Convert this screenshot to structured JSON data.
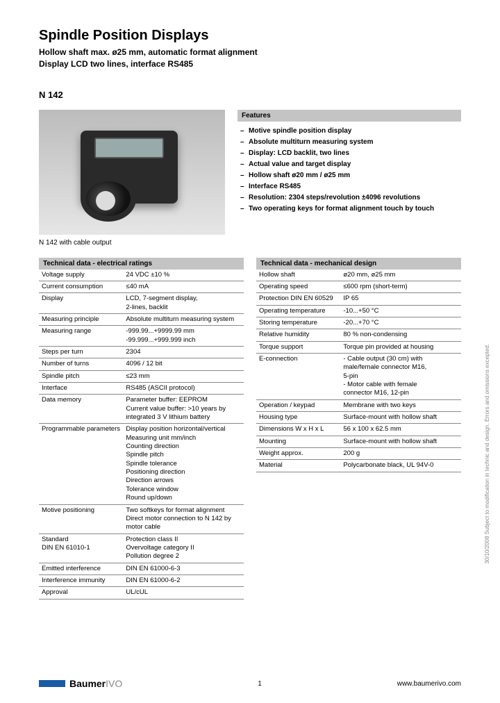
{
  "header": {
    "title": "Spindle Position Displays",
    "subtitle1": "Hollow shaft max. ø25 mm, automatic format alignment",
    "subtitle2": "Display LCD two lines, interface RS485",
    "model": "N 142"
  },
  "image_caption": "N 142 with cable output",
  "features": {
    "header": "Features",
    "items": [
      "Motive spindle position display",
      "Absolute multiturn measuring system",
      "Display: LCD backlit, two lines",
      "Actual value and target display",
      "Hollow shaft ø20 mm / ø25 mm",
      "Interface RS485",
      "Resolution: 2304 steps/revolution ±4096 revolutions",
      "Two operating keys for format alignment touch by touch"
    ]
  },
  "electrical": {
    "header": "Technical data - electrical ratings",
    "rows": [
      {
        "label": "Voltage supply",
        "value": "24 VDC ±10 %"
      },
      {
        "label": "Current consumption",
        "value": "≤40 mA"
      },
      {
        "label": "Display",
        "value": "LCD, 7-segment display,\n2-lines, backlit"
      },
      {
        "label": "Measuring principle",
        "value": "Absolute multiturn measuring system"
      },
      {
        "label": "Measuring range",
        "value": "-999.99...+9999.99 mm\n-99.999...+999.999 inch"
      },
      {
        "label": "Steps per turn",
        "value": "2304"
      },
      {
        "label": "Number of turns",
        "value": "4096 / 12 bit"
      },
      {
        "label": "Spindle pitch",
        "value": "≤23 mm"
      },
      {
        "label": "Interface",
        "value": "RS485 (ASCII protocol)"
      },
      {
        "label": "Data memory",
        "value": "Parameter buffer: EEPROM\nCurrent value buffer: >10 years by integrated 3 V lithium battery"
      },
      {
        "label": "Programmable parameters",
        "value": "Display position horizontal/vertical\nMeasuring unit mm/inch\nCounting direction\nSpindle pitch\nSpindle tolerance\nPositioning direction\nDirection arrows\nTolerance window\nRound up/down"
      },
      {
        "label": "Motive positioning",
        "value": "Two softkeys for format alignment\nDirect motor connection to N 142 by motor cable"
      },
      {
        "label": "Standard\nDIN EN 61010-1",
        "value": "Protection class II\nOvervoltage category II\nPollution degree 2"
      },
      {
        "label": "Emitted interference",
        "value": "DIN EN 61000-6-3"
      },
      {
        "label": "Interference immunity",
        "value": "DIN EN 61000-6-2"
      },
      {
        "label": "Approval",
        "value": "UL/cUL"
      }
    ]
  },
  "mechanical": {
    "header": "Technical data - mechanical design",
    "rows": [
      {
        "label": "Hollow shaft",
        "value": "ø20 mm, ø25 mm"
      },
      {
        "label": "Operating speed",
        "value": "≤600 rpm (short-term)"
      },
      {
        "label": "Protection DIN EN 60529",
        "value": "IP 65"
      },
      {
        "label": "Operating temperature",
        "value": "-10...+50 °C"
      },
      {
        "label": "Storing temperature",
        "value": "-20...+70 °C"
      },
      {
        "label": "Relative humidity",
        "value": "80 % non-condensing"
      },
      {
        "label": "Torque support",
        "value": "Torque pin provided at housing"
      },
      {
        "label": "E-connection",
        "value": "- Cable output (30 cm) with\n  male/female connector M16,\n  5-pin\n- Motor cable with female\n  connector M16, 12-pin"
      },
      {
        "label": "Operation / keypad",
        "value": "Membrane with two keys"
      },
      {
        "label": "Housing type",
        "value": "Surface-mount with hollow shaft"
      },
      {
        "label": "Dimensions W x H x L",
        "value": "56 x 100 x 62.5 mm"
      },
      {
        "label": "Mounting",
        "value": "Surface-mount with hollow shaft"
      },
      {
        "label": "Weight approx.",
        "value": "200 g"
      },
      {
        "label": "Material",
        "value": "Polycarbonate black, UL 94V-0"
      }
    ]
  },
  "footer": {
    "logo_main": "Baumer",
    "logo_sub": "IVO",
    "page": "1",
    "url": "www.baumerivo.com",
    "side": "30/10/2008   Subject to modification in technic and design.  Errors and omissions excepted."
  }
}
